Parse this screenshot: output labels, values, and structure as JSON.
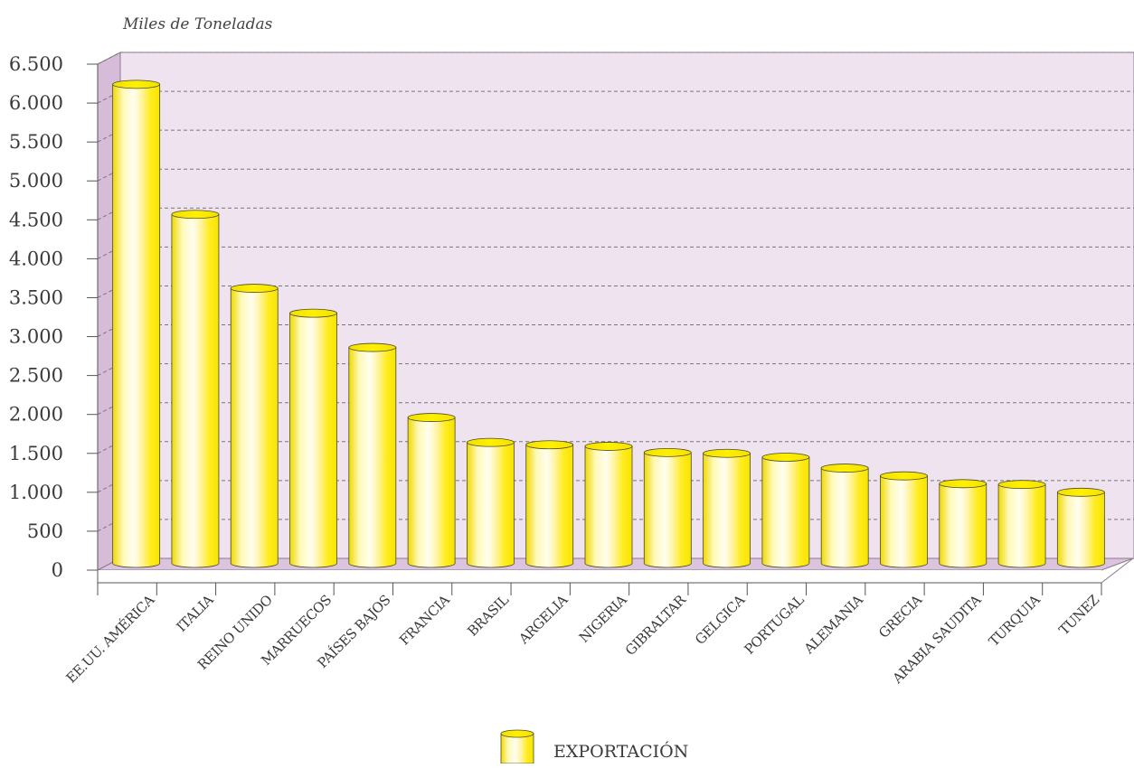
{
  "chart_data": {
    "type": "bar",
    "ylabel": "Miles de Toneladas",
    "categories": [
      "EE.UU. AMÉRICA",
      "ITALIA",
      "REINO UNIDO",
      "MARRUECOS",
      "PAÍSES BAJOS",
      "FRANCIA",
      "BRASIL",
      "ARGELIA",
      "NIGERIA",
      "GIBRALTAR",
      "GELGICA",
      "PORTUGAL",
      "ALEMANIA",
      "GRECIA",
      "ARABIA SAUDITA",
      "TURQUIA",
      "TUNEZ"
    ],
    "series": [
      {
        "name": "EXPORTACIÓN",
        "values": [
          6200,
          4530,
          3580,
          3260,
          2820,
          1920,
          1600,
          1570,
          1550,
          1470,
          1460,
          1410,
          1270,
          1170,
          1070,
          1060,
          960
        ]
      }
    ],
    "ylim": [
      0,
      6500
    ],
    "yticks": [
      0,
      500,
      1000,
      1500,
      2000,
      2500,
      3000,
      3500,
      4000,
      4500,
      5000,
      5500,
      6000,
      6500
    ],
    "ytick_labels": [
      "0",
      "500",
      "1.000",
      "1.500",
      "2.000",
      "2.500",
      "3.000",
      "3.500",
      "4.000",
      "4.500",
      "5.000",
      "5.500",
      "6.000",
      "6.500"
    ],
    "grid": true,
    "legend_position": "bottom-center",
    "colors": {
      "bar_fill": "#f5e600",
      "bar_highlight": "#fffbd0",
      "bar_shadow": "#e8d400",
      "back_wall": "#efe3f0",
      "side_wall": "#d6bcd8",
      "floor": "#dcc4df",
      "grid": "#777777"
    }
  }
}
